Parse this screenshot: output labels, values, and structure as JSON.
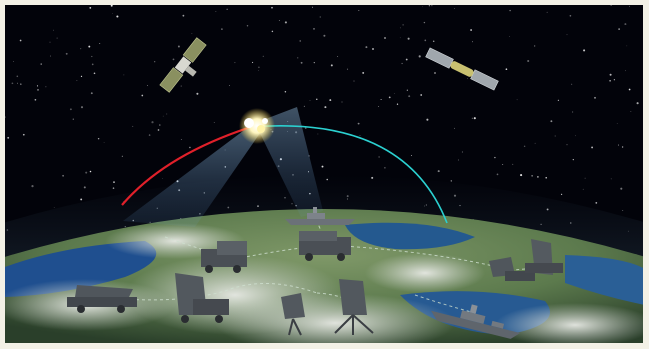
{
  "scene": {
    "kind": "illustration",
    "subject": "missile-defense-network",
    "colors": {
      "space": "#02030a",
      "atmosphere": "#14202e",
      "ocean": "#1f4f8f",
      "land": "#6f8a55",
      "cloud": "#d9dcd6",
      "trajectory_red": "#e0202a",
      "trajectory_cyan": "#2bd0d0",
      "beam": "#8ec8ff",
      "vehicle": "#4a4f55",
      "ship": "#6b7178"
    },
    "icons": [
      "satellite-icon",
      "satellite-icon",
      "interceptor-flash-icon",
      "radar-truck-icon",
      "launcher-truck-icon",
      "warship-icon"
    ]
  }
}
